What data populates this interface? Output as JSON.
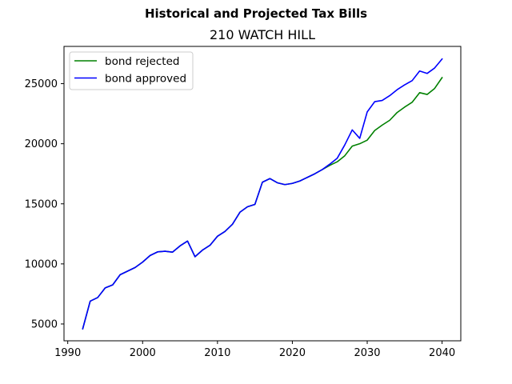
{
  "chart_data": {
    "type": "line",
    "title": "Historical and Projected Tax Bills",
    "subtitle": "210 WATCH HILL",
    "xlabel": "",
    "ylabel": "",
    "xlim": [
      1989.5,
      2042.5
    ],
    "ylim": [
      3600,
      28100
    ],
    "xticks": [
      1990,
      2000,
      2010,
      2020,
      2030,
      2040
    ],
    "yticks": [
      5000,
      10000,
      15000,
      20000,
      25000
    ],
    "grid": false,
    "legend_position": "top-left",
    "series": [
      {
        "name": "bond rejected",
        "color": "#008000",
        "x": [
          1992,
          1993,
          1994,
          1995,
          1996,
          1997,
          1998,
          1999,
          2000,
          2001,
          2002,
          2003,
          2004,
          2005,
          2006,
          2007,
          2008,
          2009,
          2010,
          2011,
          2012,
          2013,
          2014,
          2015,
          2016,
          2017,
          2018,
          2019,
          2020,
          2021,
          2022,
          2023,
          2024,
          2025,
          2026,
          2027,
          2028,
          2029,
          2030,
          2031,
          2032,
          2033,
          2034,
          2035,
          2036,
          2037,
          2038,
          2039,
          2040
        ],
        "values": [
          4600,
          6900,
          7200,
          8000,
          8250,
          9100,
          9400,
          9700,
          10150,
          10700,
          11000,
          11050,
          10980,
          11500,
          11900,
          10600,
          11150,
          11550,
          12300,
          12700,
          13300,
          14300,
          14750,
          14950,
          16800,
          17100,
          16750,
          16600,
          16700,
          16900,
          17200,
          17500,
          17850,
          18200,
          18500,
          19000,
          19800,
          20000,
          20300,
          21100,
          21550,
          21950,
          22600,
          23050,
          23450,
          24250,
          24100,
          24600,
          25500
        ]
      },
      {
        "name": "bond approved",
        "color": "#0000ff",
        "x": [
          1992,
          1993,
          1994,
          1995,
          1996,
          1997,
          1998,
          1999,
          2000,
          2001,
          2002,
          2003,
          2004,
          2005,
          2006,
          2007,
          2008,
          2009,
          2010,
          2011,
          2012,
          2013,
          2014,
          2015,
          2016,
          2017,
          2018,
          2019,
          2020,
          2021,
          2022,
          2023,
          2024,
          2025,
          2026,
          2027,
          2028,
          2029,
          2030,
          2031,
          2032,
          2033,
          2034,
          2035,
          2036,
          2037,
          2038,
          2039,
          2040
        ],
        "values": [
          4600,
          6900,
          7200,
          8000,
          8250,
          9100,
          9400,
          9700,
          10150,
          10700,
          11000,
          11050,
          10980,
          11500,
          11900,
          10600,
          11150,
          11550,
          12300,
          12700,
          13300,
          14300,
          14750,
          14950,
          16800,
          17100,
          16750,
          16600,
          16700,
          16900,
          17200,
          17500,
          17850,
          18300,
          18800,
          19900,
          21150,
          20450,
          22650,
          23500,
          23600,
          24000,
          24500,
          24900,
          25250,
          26050,
          25850,
          26300,
          27050
        ]
      }
    ]
  }
}
